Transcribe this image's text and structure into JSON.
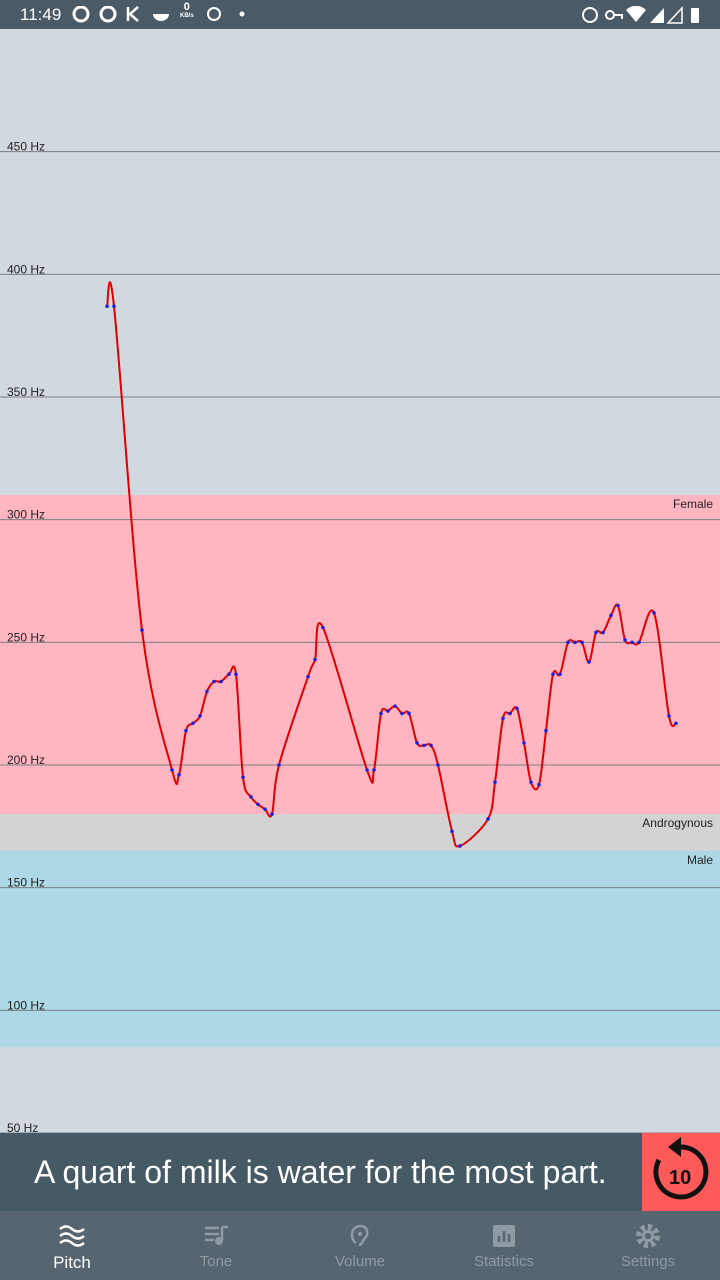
{
  "status_bar": {
    "time": "11:49",
    "net_speed": "0",
    "net_unit": "KB/s"
  },
  "chart_data": {
    "type": "line",
    "x": [
      107,
      114,
      142,
      172,
      179,
      186,
      193,
      200,
      207,
      214,
      221,
      229,
      236,
      243,
      251,
      258,
      265,
      272,
      279,
      308,
      315,
      323,
      367,
      374,
      381,
      388,
      395,
      402,
      409,
      417,
      424,
      431,
      438,
      452,
      460,
      488,
      495,
      503,
      510,
      517,
      524,
      531,
      539,
      546,
      553,
      560,
      568,
      575,
      582,
      589,
      596,
      603,
      611,
      618,
      625,
      632,
      639,
      654,
      669,
      676
    ],
    "series": [
      {
        "color": "#e00000",
        "point_color": "#2020dd",
        "values": [
          387,
          387,
          255,
          198,
          196,
          214,
          217,
          220,
          230,
          234,
          234,
          237,
          237,
          195,
          187,
          184,
          182,
          180,
          200,
          236,
          243,
          256,
          198,
          198,
          221,
          222,
          224,
          221,
          221,
          209,
          208,
          208,
          200,
          173,
          167,
          178,
          193,
          219,
          221,
          223,
          209,
          193,
          192,
          214,
          237,
          237,
          250,
          250,
          250,
          242,
          254,
          254,
          261,
          265,
          251,
          250,
          250,
          262,
          220,
          217
        ]
      }
    ],
    "xlim": [
      0,
      720
    ],
    "ylim": [
      50,
      500
    ],
    "yticks": [
      {
        "value": 50,
        "label": "50 Hz"
      },
      {
        "value": 100,
        "label": "100 Hz"
      },
      {
        "value": 150,
        "label": "150 Hz"
      },
      {
        "value": 200,
        "label": "200 Hz"
      },
      {
        "value": 250,
        "label": "250 Hz"
      },
      {
        "value": 300,
        "label": "300 Hz"
      },
      {
        "value": 350,
        "label": "350 Hz"
      },
      {
        "value": 400,
        "label": "400 Hz"
      },
      {
        "value": 450,
        "label": "450 Hz"
      }
    ],
    "grid": true,
    "bands": [
      {
        "label": "Female",
        "range": [
          180,
          310
        ],
        "color": "#ffb6c1"
      },
      {
        "label": "Androgynous",
        "range": [
          165,
          180
        ],
        "color": "#d3d3d3"
      },
      {
        "label": "Male",
        "range": [
          85,
          165
        ],
        "color": "#add8e6"
      }
    ]
  },
  "caption": {
    "text": "A quart of milk is water for the most part.",
    "replay_seconds": "10"
  },
  "nav": [
    {
      "label": "Pitch",
      "active": true
    },
    {
      "label": "Tone",
      "active": false
    },
    {
      "label": "Volume",
      "active": false
    },
    {
      "label": "Statistics",
      "active": false
    },
    {
      "label": "Settings",
      "active": false
    }
  ]
}
